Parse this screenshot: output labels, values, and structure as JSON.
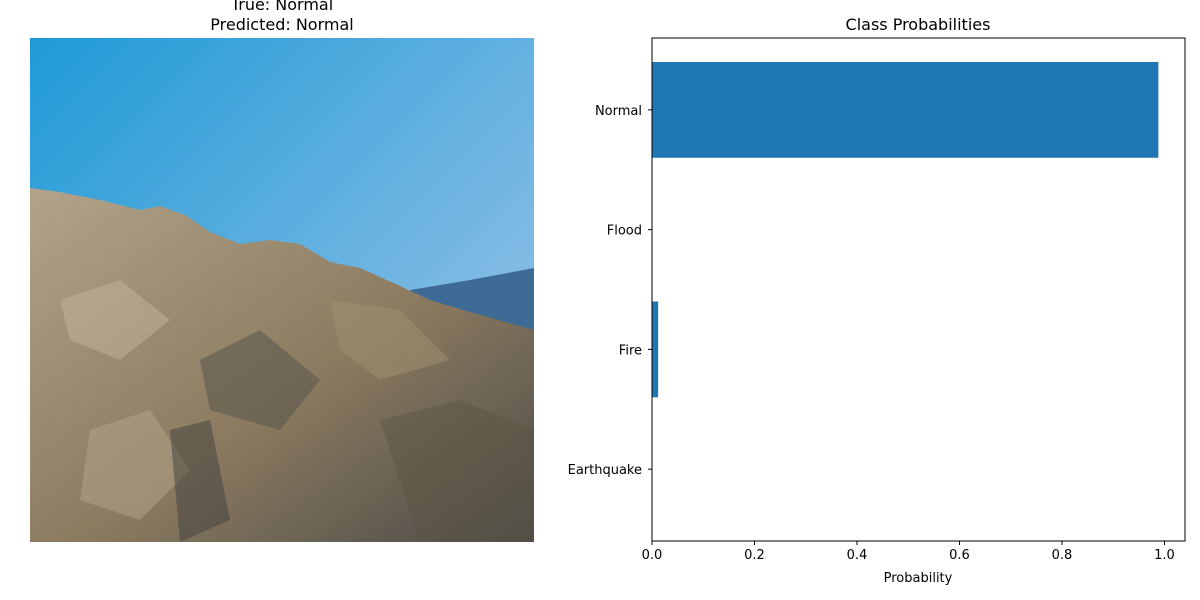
{
  "image_panel": {
    "true_label_line": "True: Normal",
    "predicted_label_line": "Predicted: Normal",
    "colors": {
      "sky_top": "#1e9ad6",
      "sky_bottom": "#a9c8ea",
      "rock_light": "#b1a48a",
      "rock_mid": "#8b7a5f",
      "rock_dark": "#4a4b48",
      "far_mountain": "#3e6b95"
    }
  },
  "chart_data": {
    "type": "bar",
    "orientation": "horizontal",
    "title": "Class Probabilities",
    "xlabel": "Probability",
    "ylabel": "",
    "categories": [
      "Earthquake",
      "Fire",
      "Flood",
      "Normal"
    ],
    "values": [
      0.0,
      0.012,
      0.0,
      0.988
    ],
    "xlim": [
      0,
      1.04
    ],
    "xticks": [
      0.0,
      0.2,
      0.4,
      0.6,
      0.8,
      1.0
    ],
    "xtick_labels": [
      "0.0",
      "0.2",
      "0.4",
      "0.6",
      "0.8",
      "1.0"
    ],
    "bar_color": "#1f77b4",
    "grid": false,
    "legend": "none"
  }
}
